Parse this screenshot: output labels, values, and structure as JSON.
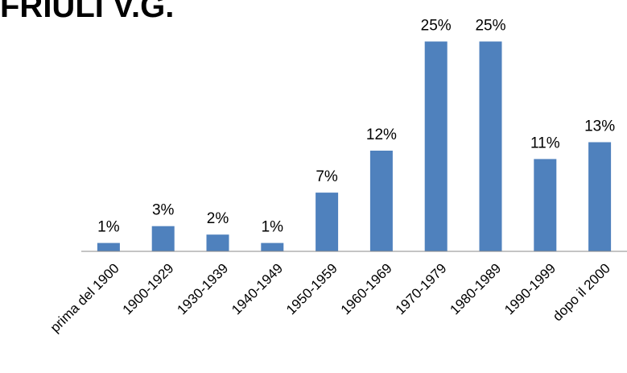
{
  "chart_data": {
    "type": "bar",
    "title": "FRIULI V.G.",
    "categories": [
      "prima del 1900",
      "1900-1929",
      "1930-1939",
      "1940-1949",
      "1950-1959",
      "1960-1969",
      "1970-1979",
      "1980-1989",
      "1990-1999",
      "dopo il 2000"
    ],
    "values": [
      1,
      3,
      2,
      1,
      7,
      12,
      25,
      25,
      11,
      13
    ],
    "data_labels": [
      "1%",
      "3%",
      "2%",
      "1%",
      "7%",
      "12%",
      "25%",
      "25%",
      "11%",
      "13%"
    ],
    "bar_color": "#4f81bd",
    "grid": false,
    "legend": "none",
    "ylim": [
      0,
      26
    ]
  }
}
